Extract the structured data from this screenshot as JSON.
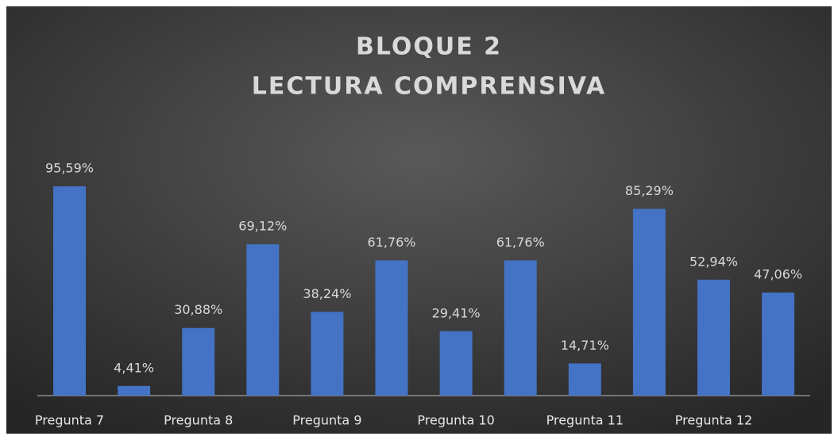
{
  "chart_data": {
    "type": "bar",
    "title": "BLOQUE 2",
    "subtitle": "LECTURA COMPRENSIVA",
    "categories": [
      "Pregunta 7",
      null,
      "Pregunta 8",
      null,
      "Pregunta 9",
      null,
      "Pregunta 10",
      null,
      "Pregunta 11",
      null,
      "Pregunta 12",
      null
    ],
    "values": [
      95.59,
      4.41,
      30.88,
      69.12,
      38.24,
      61.76,
      29.41,
      61.76,
      14.71,
      85.29,
      52.94,
      47.06
    ],
    "value_labels": [
      "95,59%",
      "4,41%",
      "30,88%",
      "69,12%",
      "38,24%",
      "61,76%",
      "29,41%",
      "61,76%",
      "14,71%",
      "85,29%",
      "52,94%",
      "47,06%"
    ],
    "color": "#4472c4"
  }
}
